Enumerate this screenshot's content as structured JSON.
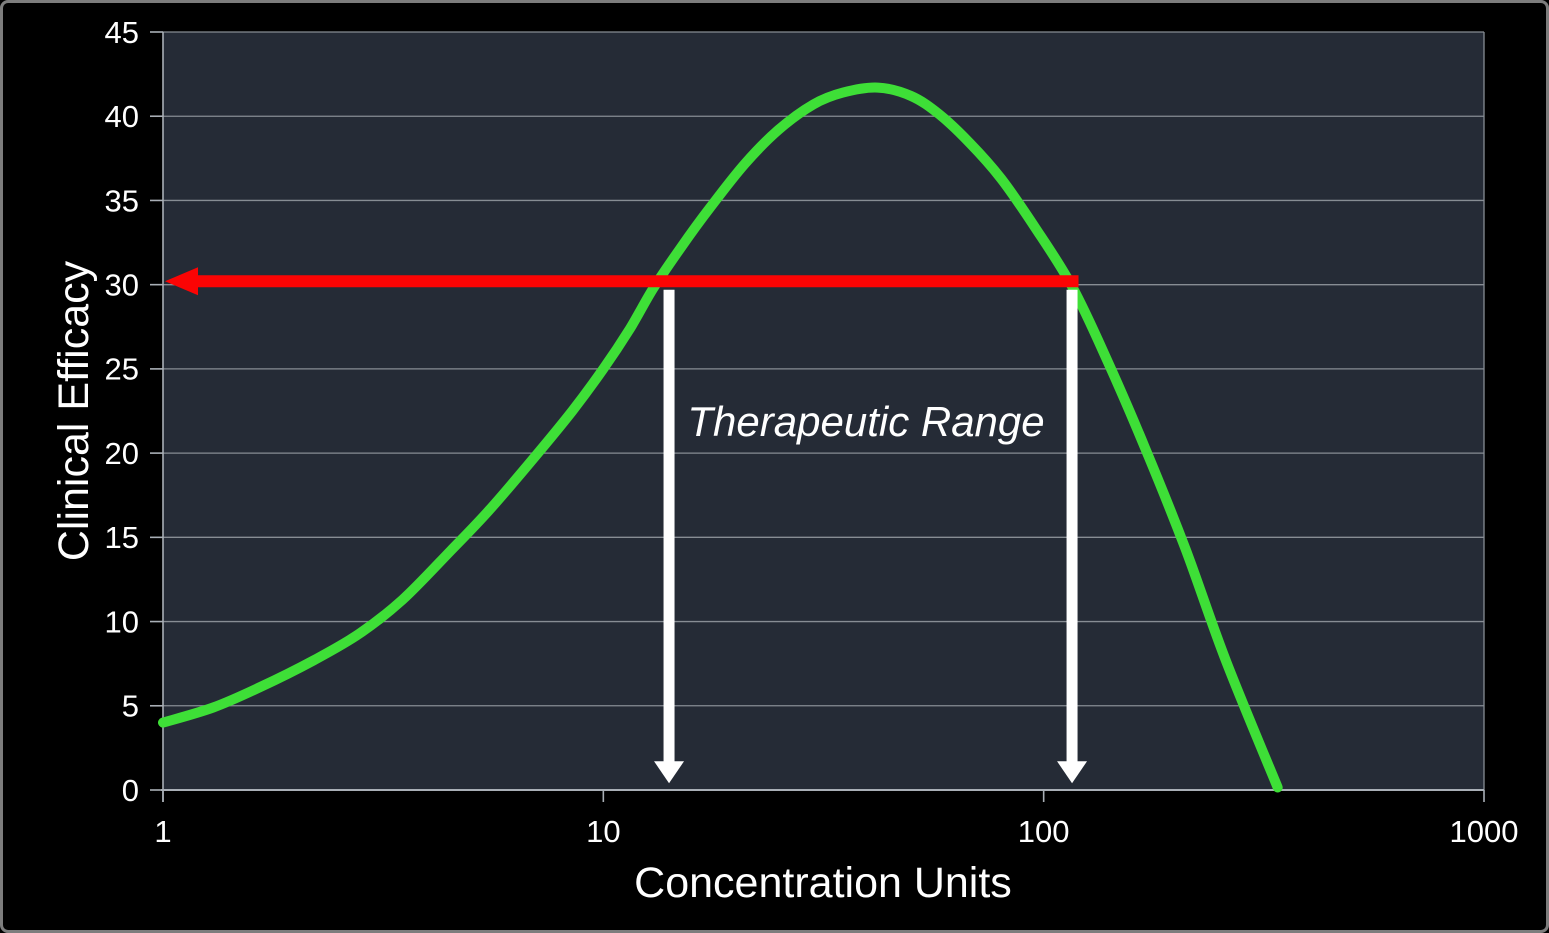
{
  "frame": {
    "background": "#000000",
    "border_color": "#7D7D7D"
  },
  "chart_data": {
    "type": "line",
    "title": "",
    "xlabel": "Concentration Units",
    "ylabel": "Clinical Efficacy",
    "x_scale": "log",
    "xlim": [
      1,
      1000
    ],
    "ylim": [
      0,
      45
    ],
    "x_ticks": [
      1,
      10,
      100,
      1000
    ],
    "y_ticks": [
      0,
      5,
      10,
      15,
      20,
      25,
      30,
      35,
      40,
      45
    ],
    "grid": "horizontal-only",
    "legend": "none",
    "colors": {
      "plot_background": "#252B36",
      "gridline": "#878D94",
      "axis": "#A9AFB6",
      "tick_label": "#FFFFFF",
      "curve": "#3EDF37",
      "threshold_arrow": "#FB0404",
      "range_arrows": "#FFFFFF",
      "annotation_text": "#FFFFFF"
    },
    "series": [
      {
        "name": "clinical-efficacy-curve",
        "color": "#3EDF37",
        "stroke_width": 10,
        "points": [
          [
            1,
            4.0
          ],
          [
            1.3,
            4.9
          ],
          [
            1.66,
            6.1
          ],
          [
            2.2,
            7.7
          ],
          [
            2.8,
            9.3
          ],
          [
            3.5,
            11.3
          ],
          [
            4.5,
            14.2
          ],
          [
            5.5,
            16.6
          ],
          [
            7,
            19.8
          ],
          [
            8.5,
            22.5
          ],
          [
            10,
            25.0
          ],
          [
            11.5,
            27.4
          ],
          [
            13,
            29.8
          ],
          [
            15,
            32.2
          ],
          [
            17.5,
            34.6
          ],
          [
            21,
            37.2
          ],
          [
            25,
            39.2
          ],
          [
            30,
            40.7
          ],
          [
            35,
            41.4
          ],
          [
            42,
            41.7
          ],
          [
            50,
            41.2
          ],
          [
            58,
            40.1
          ],
          [
            68,
            38.4
          ],
          [
            80,
            36.3
          ],
          [
            95,
            33.5
          ],
          [
            116,
            29.9
          ],
          [
            140,
            25.4
          ],
          [
            170,
            20.3
          ],
          [
            210,
            14.3
          ],
          [
            260,
            7.6
          ],
          [
            340,
            0.15
          ]
        ]
      }
    ],
    "annotations": {
      "threshold_arrow": {
        "shape": "horizontal-arrow-pointing-left",
        "y": 30.2,
        "x_from": 120,
        "x_to": 1,
        "color": "#FB0404"
      },
      "range_label": {
        "text": "Therapeutic Range",
        "x": 39.5,
        "y": 21.9,
        "style": "italic",
        "color": "#FFFFFF"
      },
      "range_bound_arrows": [
        {
          "shape": "vertical-arrow-pointing-down",
          "x": 14.1,
          "y_from": 29.7,
          "y_to": 0.4,
          "color": "#FFFFFF"
        },
        {
          "shape": "vertical-arrow-pointing-down",
          "x": 116,
          "y_from": 29.7,
          "y_to": 0.4,
          "color": "#FFFFFF"
        }
      ]
    }
  }
}
